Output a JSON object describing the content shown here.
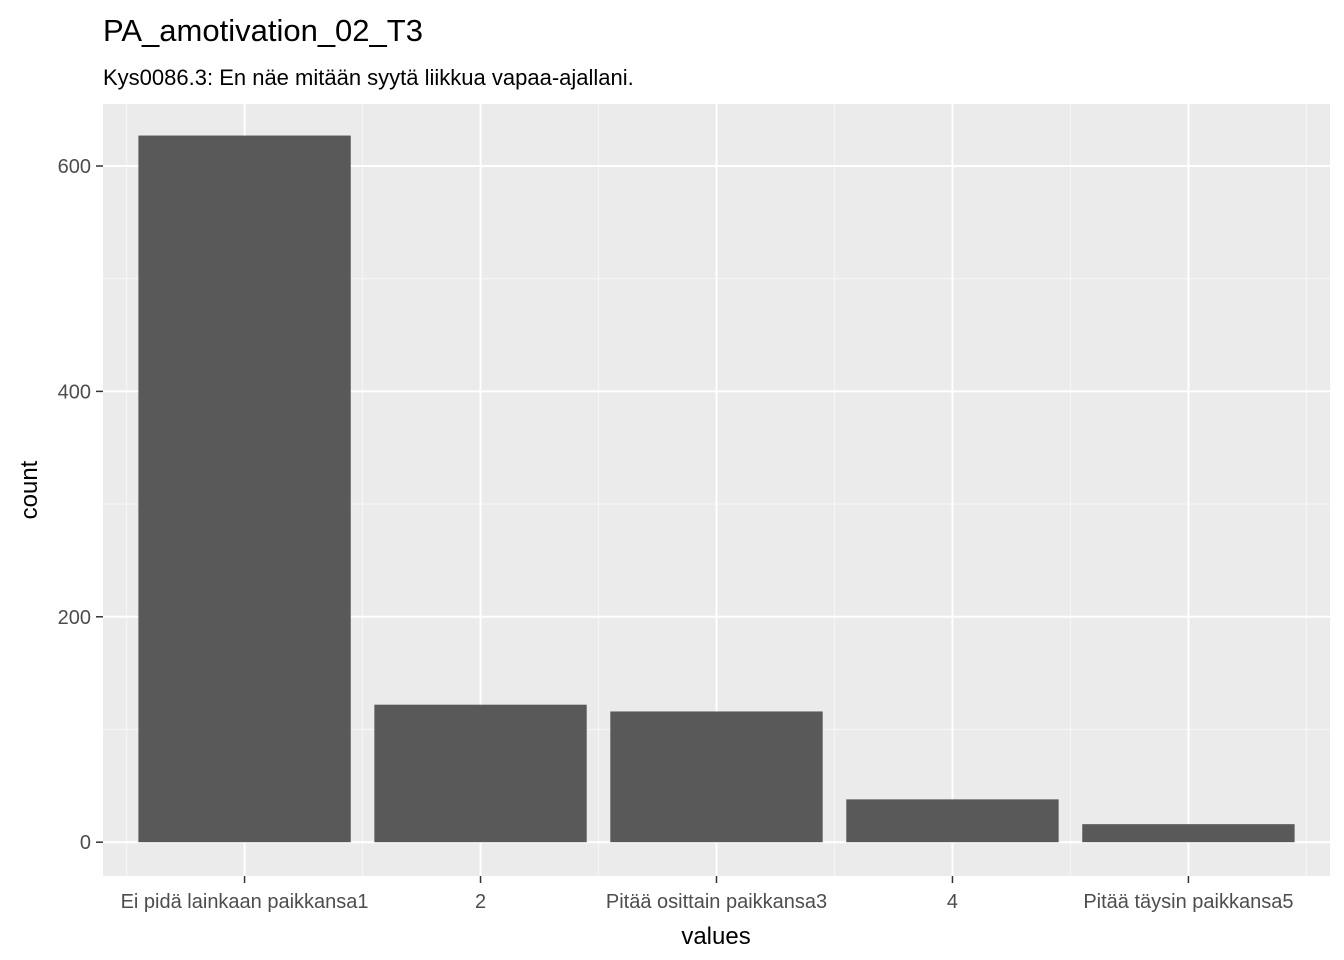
{
  "chart_data": {
    "type": "bar",
    "title": "PA_amotivation_02_T3",
    "subtitle": "Kys0086.3: En näe mitään syytä liikkua vapaa-ajallani.",
    "xlabel": "values",
    "ylabel": "count",
    "categories": [
      "Ei pidä lainkaan paikkansa1",
      "2",
      "Pitää osittain paikkansa3",
      "4",
      "Pitää täysin paikkansa5"
    ],
    "values": [
      627,
      122,
      116,
      38,
      16
    ],
    "ylim": [
      -30,
      655
    ],
    "yticks": [
      0,
      200,
      400,
      600
    ],
    "ytick_labels": [
      "0",
      "200",
      "400",
      "600"
    ],
    "grid": true,
    "colors": {
      "bar": "#595959",
      "panel": "#ebebeb",
      "grid_major": "#ffffff",
      "grid_minor": "#f5f5f5",
      "tick": "#333333"
    }
  }
}
